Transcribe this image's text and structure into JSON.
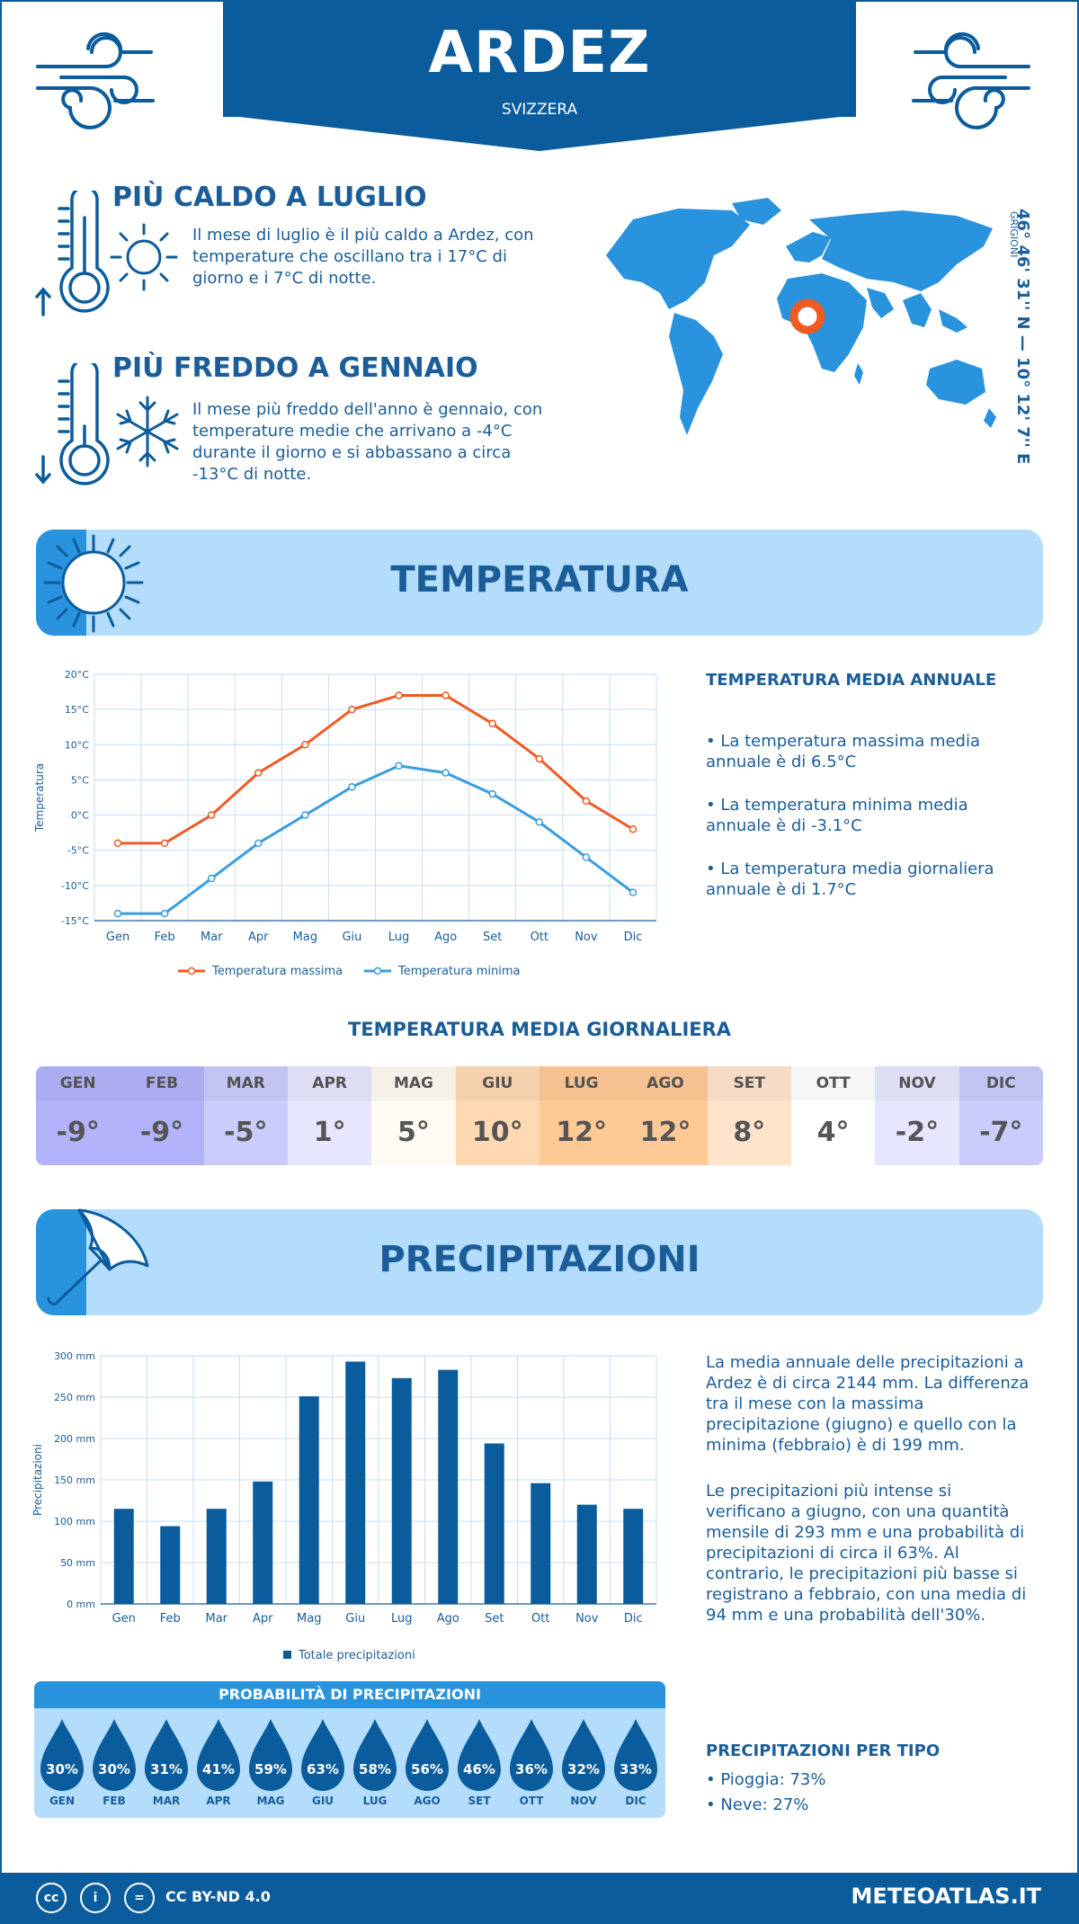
{
  "header": {
    "title": "ARDEZ",
    "subtitle": "SVIZZERA"
  },
  "coords": {
    "text": "46° 46' 31'' N — 10° 12' 7'' E",
    "sub": "GRIGIONI"
  },
  "hottest": {
    "title": "PIÙ CALDO A LUGLIO",
    "text": "Il mese di luglio è il più caldo a Ardez, con temperature che oscillano tra i 17°C di giorno e i 7°C di notte."
  },
  "coldest": {
    "title": "PIÙ FREDDO A GENNAIO",
    "text": "Il mese più freddo dell'anno è gennaio, con temperature medie che arrivano a -4°C durante il giorno e si abbassano a circa -13°C di notte."
  },
  "temperature_section": {
    "title": "TEMPERATURA",
    "side_title": "TEMPERATURA MEDIA ANNUALE",
    "bullets": [
      "• La temperatura massima media annuale è di 6.5°C",
      "• La temperatura minima media annuale è di -3.1°C",
      "• La temperatura media giornaliera annuale è di 1.7°C"
    ]
  },
  "daily": {
    "title": "TEMPERATURA MEDIA GIORNALIERA",
    "months": [
      "GEN",
      "FEB",
      "MAR",
      "APR",
      "MAG",
      "GIU",
      "LUG",
      "AGO",
      "SET",
      "OTT",
      "NOV",
      "DIC"
    ],
    "values": [
      "-9°",
      "-9°",
      "-5°",
      "1°",
      "5°",
      "10°",
      "12°",
      "12°",
      "8°",
      "4°",
      "-2°",
      "-7°"
    ],
    "head_colors": [
      "#b3b3fb",
      "#b3b3fb",
      "#cbcbfc",
      "#e6e6fe",
      "#fffaf2",
      "#ffd9b3",
      "#ffc996",
      "#ffc996",
      "#ffe4cc",
      "#ffffff",
      "#e6e6fe",
      "#cbcbfc"
    ],
    "body_colors": [
      "#b3b3fb",
      "#b3b3fb",
      "#cbcbfc",
      "#e6e6fe",
      "#fffaf2",
      "#ffd9b3",
      "#ffc996",
      "#ffc996",
      "#ffe4cc",
      "#ffffff",
      "#e6e6fe",
      "#cbcbfc"
    ]
  },
  "precip_section": {
    "title": "PRECIPITAZIONI",
    "para1": "La media annuale delle precipitazioni a Ardez è di circa 2144 mm. La differenza tra il mese con la massima precipitazione (giugno) e quello con la minima (febbraio) è di 199 mm.",
    "para2": "Le precipitazioni più intense si verificano a giugno, con una quantità mensile di 293 mm e una probabilità di precipitazioni di circa il 63%. Al contrario, le precipitazioni più basse si registrano a febbraio, con una media di 94 mm e una probabilità dell'30%.",
    "type_title": "PRECIPITAZIONI PER TIPO",
    "types": [
      "• Pioggia: 73%",
      "• Neve: 27%"
    ]
  },
  "probability": {
    "title": "PROBABILITÀ DI PRECIPITAZIONI",
    "months": [
      "GEN",
      "FEB",
      "MAR",
      "APR",
      "MAG",
      "GIU",
      "LUG",
      "AGO",
      "SET",
      "OTT",
      "NOV",
      "DIC"
    ],
    "values": [
      "30%",
      "30%",
      "31%",
      "41%",
      "59%",
      "63%",
      "58%",
      "56%",
      "46%",
      "36%",
      "32%",
      "33%"
    ]
  },
  "footer": {
    "license": "CC BY-ND 4.0",
    "site": "METEOATLAS.IT"
  },
  "colors": {
    "primary": "#0b5c9c",
    "light": "#b3ddfb",
    "accent": "#2a93de",
    "max_line": "#f05a23",
    "min_line": "#3a9de0",
    "map_marker": "#f05a23"
  },
  "chart_data": [
    {
      "type": "line",
      "categories": [
        "Gen",
        "Feb",
        "Mar",
        "Apr",
        "Mag",
        "Giu",
        "Lug",
        "Ago",
        "Set",
        "Ott",
        "Nov",
        "Dic"
      ],
      "series": [
        {
          "name": "Temperatura massima",
          "values": [
            -4,
            -4,
            0,
            6,
            10,
            15,
            17,
            17,
            13,
            8,
            2,
            -2
          ],
          "color": "#f05a23"
        },
        {
          "name": "Temperatura minima",
          "values": [
            -14,
            -14,
            -9,
            -4,
            0,
            4,
            7,
            6,
            3,
            -1,
            -6,
            -11
          ],
          "color": "#3a9de0"
        }
      ],
      "ylabel": "Temperatura",
      "yticks": [
        "20°C",
        "15°C",
        "10°C",
        "5°C",
        "0°C",
        "-5°C",
        "-10°C",
        "-15°C"
      ],
      "ylim": [
        -15,
        20
      ],
      "grid": true,
      "legend": "bottom"
    },
    {
      "type": "bar",
      "categories": [
        "Gen",
        "Feb",
        "Mar",
        "Apr",
        "Mag",
        "Giu",
        "Lug",
        "Ago",
        "Set",
        "Ott",
        "Nov",
        "Dic"
      ],
      "series": [
        {
          "name": "Totale precipitazioni",
          "values": [
            115,
            94,
            115,
            148,
            251,
            293,
            273,
            283,
            194,
            146,
            120,
            115
          ],
          "color": "#0b5c9c"
        }
      ],
      "ylabel": "Precipitazioni",
      "yticks": [
        "300 mm",
        "250 mm",
        "200 mm",
        "150 mm",
        "100 mm",
        "50 mm",
        "0 mm"
      ],
      "ylim": [
        0,
        300
      ],
      "grid": true,
      "legend": "bottom"
    }
  ]
}
